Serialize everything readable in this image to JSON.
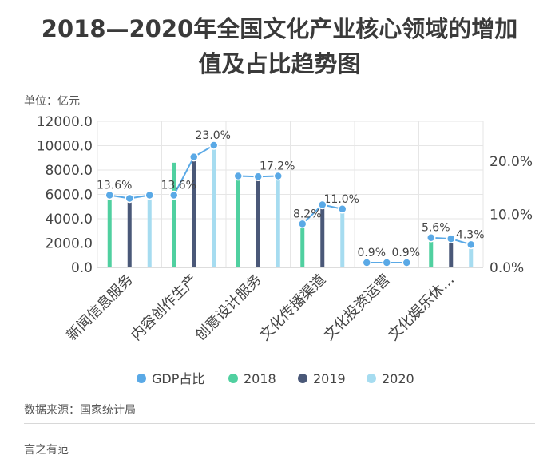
{
  "title_line1": "2018—2020年全国文化产业核心领域的增加",
  "title_line2": "值及占比趋势图",
  "unit_label": "单位：亿元",
  "source": "数据来源：国家统计局",
  "brand": "言之有范",
  "chart_data": {
    "type": "bar",
    "categories": [
      "新闻信息服务",
      "内容创作生产",
      "创意设计服务",
      "文化传播渠道",
      "文化投资运营",
      "文化娱乐休…"
    ],
    "series": [
      {
        "name": "2018",
        "color": "#50d0a0",
        "values": [
          5600,
          8600,
          7200,
          3400,
          300,
          2400
        ]
      },
      {
        "name": "2019",
        "color": "#4a5878",
        "values": [
          5700,
          9000,
          7600,
          4900,
          350,
          2200
        ]
      },
      {
        "name": "2020",
        "color": "#a6dcf0",
        "values": [
          6100,
          9800,
          7700,
          4800,
          400,
          1800
        ]
      }
    ],
    "line_series": {
      "name": "GDP占比",
      "color": "#5aa9e6",
      "values": [
        [
          13.6,
          13.0,
          13.6
        ],
        [
          13.6,
          20.8,
          23.0
        ],
        [
          17.2,
          17.1,
          17.2
        ],
        [
          8.2,
          11.8,
          11.0
        ],
        [
          0.9,
          0.9,
          0.9
        ],
        [
          5.6,
          5.4,
          4.3
        ]
      ],
      "labels": [
        [
          "13.6%",
          "",
          ""
        ],
        [
          "13.6%",
          "",
          "23.0%"
        ],
        [
          "",
          "",
          "17.2%"
        ],
        [
          "8.2%",
          "",
          "11.0%"
        ],
        [
          "0.9%",
          "",
          "0.9%"
        ],
        [
          "5.6%",
          "",
          "4.3%"
        ]
      ]
    },
    "y_left": {
      "min": 0,
      "max": 12000,
      "ticks": [
        "0.0",
        "2000.0",
        "4000.0",
        "6000.0",
        "8000.0",
        "10000.0",
        "12000.0"
      ]
    },
    "y_right": {
      "min": 0,
      "max": 27.5,
      "ticks": [
        "0.0%",
        "10.0%",
        "20.0%"
      ],
      "tick_values": [
        0,
        10,
        20
      ]
    },
    "legend": [
      "GDP占比",
      "2018",
      "2019",
      "2020"
    ],
    "legend_position": "bottom",
    "grid": true
  }
}
